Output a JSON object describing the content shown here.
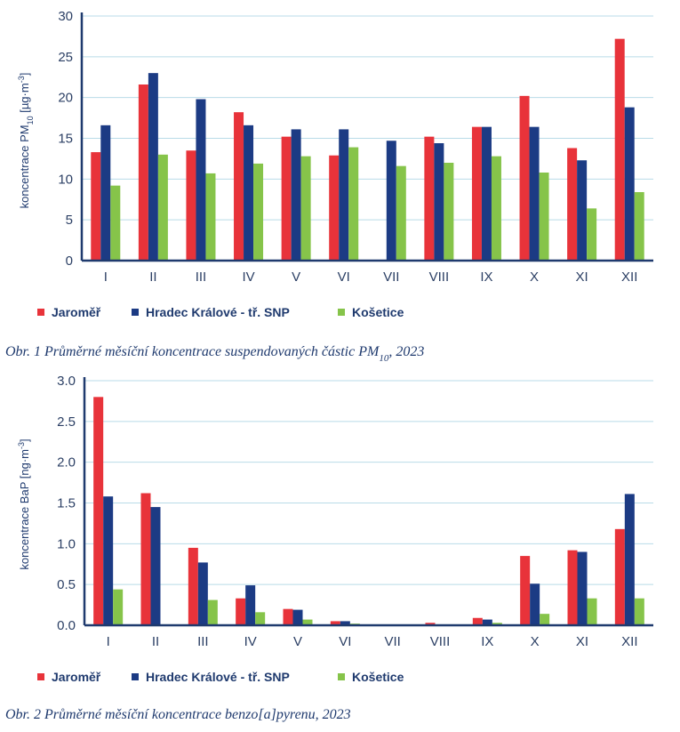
{
  "colors": {
    "Jaroměř": "#e8333a",
    "Hradec Králové - tř. SNP": "#1c3b84",
    "Košetice": "#86c44a",
    "axis": "#1f3a6e",
    "grid": "#b9dbe8"
  },
  "charts": [
    {
      "caption_main": "Obr. 1 Průměrné měsíční koncentrace suspendovaných částic PM",
      "caption_sub": "10",
      "caption_tail": ", 2023"
    },
    {
      "caption_main": "Obr. 2 Průměrné měsíční koncentrace benzo[a]pyrenu, 2023"
    }
  ],
  "chart_data": [
    {
      "type": "bar",
      "ylabel_prefix": "koncentrace PM",
      "ylabel_sub": "10",
      "ylabel_unit": " [µg·m",
      "ylabel_sup": "-3",
      "ylabel_close": "]",
      "ylim": [
        0,
        30
      ],
      "yticks": [
        "0",
        "5",
        "10",
        "15",
        "20",
        "25",
        "30"
      ],
      "grid": true,
      "legend": "bottom",
      "categories": [
        "I",
        "II",
        "III",
        "IV",
        "V",
        "VI",
        "VII",
        "VIII",
        "IX",
        "X",
        "XI",
        "XII"
      ],
      "series": [
        {
          "name": "Jaroměř",
          "values": [
            13.3,
            21.6,
            13.5,
            18.2,
            15.2,
            12.9,
            null,
            15.2,
            16.4,
            20.2,
            13.8,
            27.2
          ]
        },
        {
          "name": "Hradec Králové - tř. SNP",
          "values": [
            16.6,
            23.0,
            19.8,
            16.6,
            16.1,
            16.1,
            14.7,
            14.4,
            16.4,
            16.4,
            12.3,
            18.8
          ]
        },
        {
          "name": "Košetice",
          "values": [
            9.2,
            13.0,
            10.7,
            11.9,
            12.8,
            13.9,
            11.6,
            12.0,
            12.8,
            10.8,
            6.4,
            8.4
          ]
        }
      ]
    },
    {
      "type": "bar",
      "ylabel_prefix": "koncentrace BaP",
      "ylabel_unit": " [ng·m",
      "ylabel_sup": "-3",
      "ylabel_close": "]",
      "ylim": [
        0,
        3.0
      ],
      "yticks": [
        "0.0",
        "0.5",
        "1.0",
        "1.5",
        "2.0",
        "2.5",
        "3.0"
      ],
      "grid": true,
      "legend": "bottom",
      "categories": [
        "I",
        "II",
        "III",
        "IV",
        "V",
        "VI",
        "VII",
        "VIII",
        "IX",
        "X",
        "XI",
        "XII"
      ],
      "series": [
        {
          "name": "Jaroměř",
          "values": [
            2.8,
            1.62,
            0.95,
            0.33,
            0.2,
            0.05,
            null,
            0.03,
            0.09,
            0.85,
            0.92,
            1.18
          ]
        },
        {
          "name": "Hradec Králové - tř. SNP",
          "values": [
            1.58,
            1.45,
            0.77,
            0.49,
            0.19,
            0.05,
            0.01,
            0.01,
            0.07,
            0.51,
            0.9,
            1.61
          ]
        },
        {
          "name": "Košetice",
          "values": [
            0.44,
            null,
            0.31,
            0.16,
            0.07,
            0.02,
            0.0,
            0.01,
            0.03,
            0.14,
            0.33,
            0.33
          ]
        }
      ]
    }
  ]
}
